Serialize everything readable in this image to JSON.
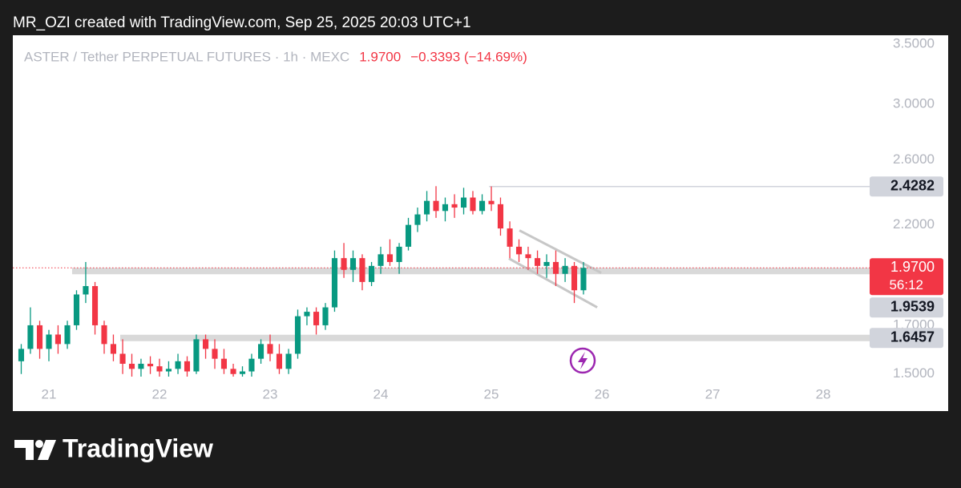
{
  "header": {
    "text": "MR_OZI created with TradingView.com, Sep 25, 2025 20:03 UTC+1"
  },
  "footer": {
    "brand": "TradingView"
  },
  "chart_data": {
    "type": "candlestick",
    "symbol": "ASTER / Tether PERPETUAL FUTURES · 1h · MEXC",
    "change": "−0.3393 (−14.69%)",
    "last_price": {
      "value": 1.97,
      "label": "1.9700"
    },
    "countdown": "56:12",
    "log_scale": true,
    "up_color": "#089981",
    "down_color": "#f23645",
    "xlim": [
      20.674,
      28.42
    ],
    "xticks": [
      21,
      22,
      23,
      24,
      25,
      26,
      27,
      28
    ],
    "ylim": [
      1.49,
      3.61
    ],
    "yticks": [
      {
        "value": 1.5,
        "label": "1.5000"
      },
      {
        "value": 1.7,
        "label": "1.7000"
      },
      {
        "value": 2.2,
        "label": "2.2000"
      },
      {
        "value": 2.6,
        "label": "2.6000"
      },
      {
        "value": 3.0,
        "label": "3.0000"
      },
      {
        "value": 3.5,
        "label": "3.5000"
      }
    ],
    "x": [
      20.75,
      20.833,
      20.917,
      21,
      21.083,
      21.167,
      21.25,
      21.333,
      21.417,
      21.5,
      21.583,
      21.667,
      21.75,
      21.833,
      21.917,
      22,
      22.083,
      22.167,
      22.25,
      22.333,
      22.417,
      22.5,
      22.583,
      22.667,
      22.75,
      22.833,
      22.917,
      23,
      23.083,
      23.167,
      23.25,
      23.333,
      23.417,
      23.5,
      23.583,
      23.667,
      23.75,
      23.833,
      23.917,
      24,
      24.083,
      24.167,
      24.25,
      24.333,
      24.417,
      24.5,
      24.583,
      24.667,
      24.75,
      24.833,
      24.917,
      25,
      25.083,
      25.167,
      25.25,
      25.333,
      25.417,
      25.5,
      25.583,
      25.667,
      25.75,
      25.833
    ],
    "open": [
      1.55,
      1.6,
      1.7,
      1.6,
      1.66,
      1.62,
      1.7,
      1.84,
      1.88,
      1.7,
      1.62,
      1.58,
      1.54,
      1.52,
      1.54,
      1.53,
      1.51,
      1.52,
      1.55,
      1.51,
      1.64,
      1.6,
      1.56,
      1.52,
      1.5,
      1.51,
      1.56,
      1.62,
      1.58,
      1.52,
      1.58,
      1.74,
      1.76,
      1.7,
      1.78,
      2.02,
      1.96,
      2.02,
      1.9,
      1.98,
      2.04,
      2.0,
      2.08,
      2.2,
      2.26,
      2.34,
      2.28,
      2.32,
      2.3,
      2.36,
      2.28,
      2.34,
      2.32,
      2.18,
      2.08,
      2.04,
      2.02,
      1.98,
      2.0,
      1.94,
      1.98,
      1.86
    ],
    "high": [
      1.62,
      1.78,
      1.72,
      1.68,
      1.7,
      1.72,
      1.86,
      2.0,
      1.9,
      1.72,
      1.66,
      1.64,
      1.58,
      1.56,
      1.57,
      1.56,
      1.55,
      1.58,
      1.57,
      1.66,
      1.66,
      1.64,
      1.6,
      1.54,
      1.53,
      1.58,
      1.64,
      1.66,
      1.62,
      1.6,
      1.77,
      1.78,
      1.78,
      1.8,
      2.06,
      2.1,
      2.06,
      2.04,
      2.0,
      2.08,
      2.12,
      2.1,
      2.24,
      2.3,
      2.4,
      2.43,
      2.36,
      2.38,
      2.42,
      2.4,
      2.38,
      2.4282,
      2.36,
      2.22,
      2.12,
      2.08,
      2.06,
      2.04,
      2.06,
      2.02,
      2.0,
      2.0
    ],
    "low": [
      1.5,
      1.58,
      1.56,
      1.55,
      1.58,
      1.6,
      1.68,
      1.8,
      1.66,
      1.58,
      1.55,
      1.5,
      1.49,
      1.49,
      1.5,
      1.49,
      1.49,
      1.5,
      1.49,
      1.5,
      1.56,
      1.52,
      1.5,
      1.49,
      1.49,
      1.49,
      1.54,
      1.55,
      1.5,
      1.5,
      1.56,
      1.7,
      1.66,
      1.68,
      1.76,
      1.92,
      1.9,
      1.86,
      1.88,
      1.94,
      1.98,
      1.94,
      2.06,
      2.16,
      2.22,
      2.24,
      2.22,
      2.24,
      2.26,
      2.26,
      2.26,
      2.28,
      2.14,
      2.02,
      2.0,
      1.96,
      1.94,
      1.92,
      1.88,
      1.9,
      1.8,
      1.84
    ],
    "close": [
      1.6,
      1.7,
      1.6,
      1.66,
      1.62,
      1.7,
      1.84,
      1.88,
      1.7,
      1.62,
      1.58,
      1.54,
      1.52,
      1.54,
      1.53,
      1.51,
      1.52,
      1.55,
      1.51,
      1.64,
      1.6,
      1.56,
      1.52,
      1.5,
      1.51,
      1.56,
      1.62,
      1.58,
      1.52,
      1.58,
      1.74,
      1.76,
      1.7,
      1.78,
      2.02,
      1.96,
      2.02,
      1.9,
      1.98,
      2.04,
      2.0,
      2.08,
      2.2,
      2.26,
      2.34,
      2.28,
      2.32,
      2.3,
      2.36,
      2.28,
      2.34,
      2.32,
      2.18,
      2.08,
      2.04,
      2.02,
      1.98,
      2.0,
      1.94,
      1.98,
      1.86,
      1.97
    ],
    "levels": [
      {
        "value": 2.4282,
        "start": 24.98,
        "style": "line"
      },
      {
        "value": 1.9539,
        "start": 21.21,
        "style": "band"
      },
      {
        "value": 1.6457,
        "start": 21.645,
        "style": "band"
      }
    ],
    "channel": [
      {
        "x": [
          25.254,
          25.993
        ],
        "y": [
          2.169,
          1.945
        ]
      },
      {
        "x": [
          25.159,
          25.957
        ],
        "y": [
          2.018,
          1.78
        ]
      }
    ]
  }
}
